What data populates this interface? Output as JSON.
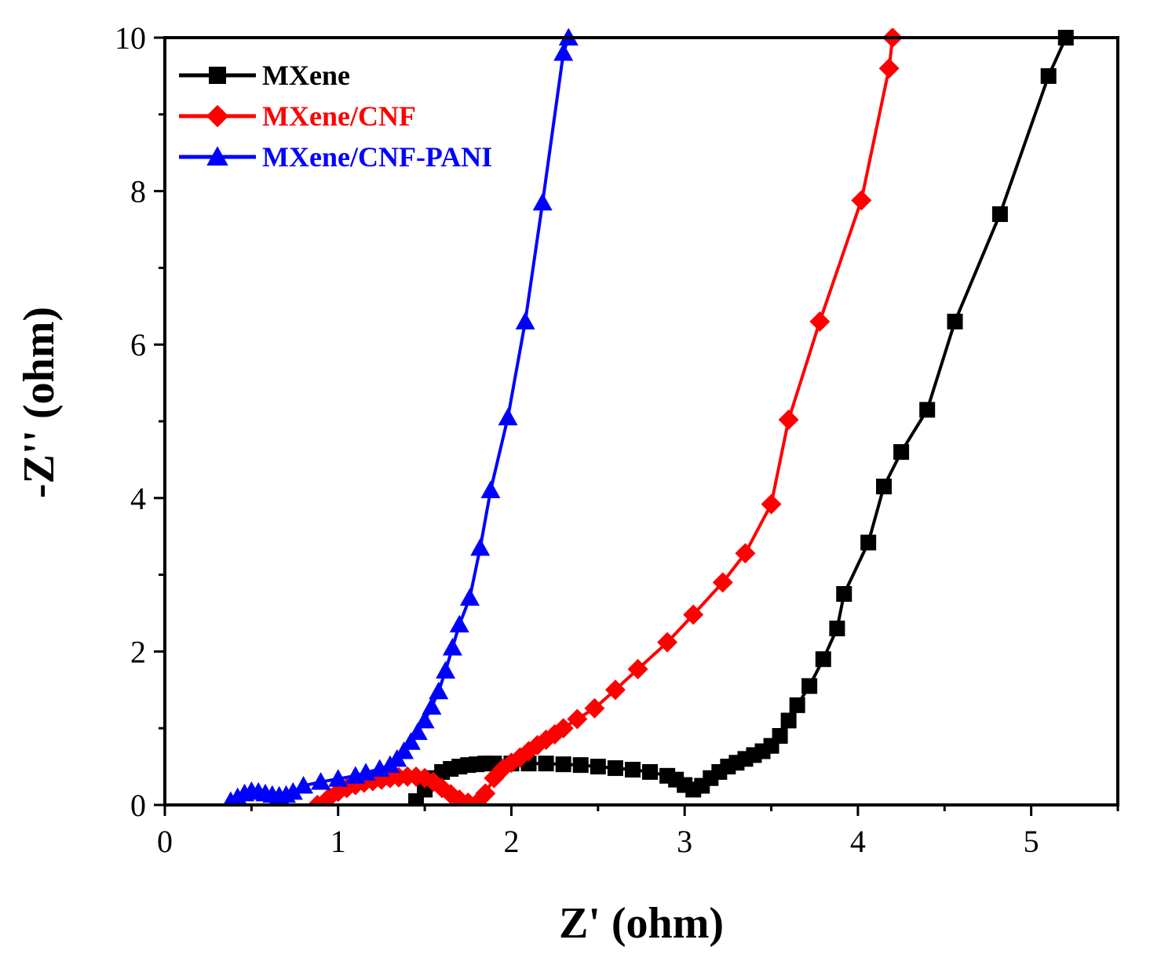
{
  "chart_data": {
    "type": "line",
    "title": "",
    "xlabel": "Z' (ohm)",
    "ylabel": "-Z'' (ohm)",
    "xlim": [
      0,
      5.5
    ],
    "ylim": [
      0,
      10
    ],
    "x_ticks": [
      0,
      1,
      2,
      3,
      4,
      5
    ],
    "y_ticks": [
      0,
      2,
      4,
      6,
      8,
      10
    ],
    "x_tick_labels": [
      "0",
      "1",
      "2",
      "3",
      "4",
      "5"
    ],
    "y_tick_labels": [
      "0",
      "2",
      "4",
      "6",
      "8",
      "10"
    ],
    "grid": false,
    "legend_position": "top-left",
    "series": [
      {
        "name": "MXene",
        "color": "#000000",
        "marker": "square",
        "x": [
          1.45,
          1.5,
          1.55,
          1.6,
          1.65,
          1.7,
          1.75,
          1.8,
          1.85,
          1.9,
          2.0,
          2.1,
          2.2,
          2.3,
          2.4,
          2.5,
          2.6,
          2.7,
          2.8,
          2.9,
          2.95,
          3.0,
          3.05,
          3.1,
          3.15,
          3.2,
          3.25,
          3.3,
          3.35,
          3.4,
          3.45,
          3.5,
          3.55,
          3.6,
          3.65,
          3.72,
          3.8,
          3.88,
          3.92,
          4.06,
          4.15,
          4.25,
          4.4,
          4.56,
          4.82,
          5.1,
          5.2
        ],
        "y": [
          0.05,
          0.2,
          0.35,
          0.43,
          0.47,
          0.5,
          0.52,
          0.53,
          0.54,
          0.54,
          0.54,
          0.54,
          0.54,
          0.53,
          0.52,
          0.5,
          0.48,
          0.46,
          0.43,
          0.38,
          0.33,
          0.26,
          0.2,
          0.25,
          0.35,
          0.43,
          0.5,
          0.55,
          0.6,
          0.65,
          0.7,
          0.77,
          0.9,
          1.1,
          1.3,
          1.55,
          1.9,
          2.3,
          2.75,
          3.42,
          4.15,
          4.6,
          5.15,
          6.3,
          7.7,
          9.5,
          10.0
        ]
      },
      {
        "name": "MXene/CNF",
        "color": "#ff0000",
        "marker": "diamond",
        "x": [
          0.88,
          0.95,
          1.0,
          1.05,
          1.1,
          1.15,
          1.2,
          1.25,
          1.3,
          1.35,
          1.4,
          1.45,
          1.5,
          1.55,
          1.6,
          1.65,
          1.7,
          1.75,
          1.8,
          1.85,
          1.9,
          1.95,
          2.0,
          2.05,
          2.1,
          2.15,
          2.2,
          2.25,
          2.3,
          2.38,
          2.48,
          2.6,
          2.73,
          2.9,
          3.05,
          3.22,
          3.35,
          3.5,
          3.6,
          3.78,
          4.02,
          4.18,
          4.2
        ],
        "y": [
          0.0,
          0.1,
          0.17,
          0.22,
          0.26,
          0.29,
          0.31,
          0.33,
          0.35,
          0.36,
          0.37,
          0.37,
          0.35,
          0.3,
          0.22,
          0.14,
          0.07,
          0.03,
          0.02,
          0.15,
          0.35,
          0.47,
          0.55,
          0.62,
          0.7,
          0.78,
          0.85,
          0.92,
          1.0,
          1.12,
          1.26,
          1.5,
          1.77,
          2.12,
          2.48,
          2.9,
          3.28,
          3.92,
          5.02,
          6.3,
          7.88,
          9.6,
          10.0
        ]
      },
      {
        "name": "MXene/CNF-PANI",
        "color": "#0000ff",
        "marker": "triangle",
        "x": [
          0.38,
          0.42,
          0.46,
          0.5,
          0.54,
          0.58,
          0.62,
          0.66,
          0.7,
          0.74,
          0.8,
          0.9,
          1.0,
          1.1,
          1.16,
          1.24,
          1.3,
          1.34,
          1.38,
          1.42,
          1.46,
          1.5,
          1.54,
          1.58,
          1.62,
          1.66,
          1.7,
          1.76,
          1.82,
          1.88,
          1.98,
          2.08,
          2.18,
          2.3,
          2.33
        ],
        "y": [
          0.05,
          0.1,
          0.15,
          0.18,
          0.17,
          0.15,
          0.13,
          0.12,
          0.13,
          0.17,
          0.25,
          0.3,
          0.34,
          0.38,
          0.42,
          0.47,
          0.52,
          0.6,
          0.7,
          0.82,
          0.95,
          1.1,
          1.28,
          1.48,
          1.75,
          2.05,
          2.35,
          2.7,
          3.35,
          4.1,
          5.05,
          6.3,
          7.85,
          9.8,
          10.0
        ]
      }
    ]
  }
}
